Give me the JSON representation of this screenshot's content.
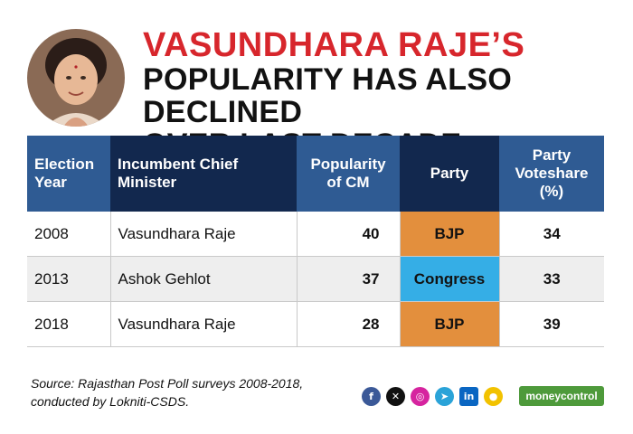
{
  "title": {
    "line1": "VASUNDHARA RAJE’S",
    "line2": "POPULARITY HAS ALSO DECLINED",
    "line3": "OVER LAST DECADE"
  },
  "table": {
    "headers": [
      "Election Year",
      "Incumbent Chief Minister",
      "Popularity of CM",
      "Party",
      "Party Voteshare (%)"
    ],
    "rows": [
      {
        "year": "2008",
        "cm": "Vasundhara Raje",
        "popularity": "40",
        "party": "BJP",
        "voteshare": "34",
        "party_color": "#e38f3d"
      },
      {
        "year": "2013",
        "cm": "Ashok Gehlot",
        "popularity": "37",
        "party": "Congress",
        "voteshare": "33",
        "party_color": "#35aee6"
      },
      {
        "year": "2018",
        "cm": "Vasundhara Raje",
        "popularity": "28",
        "party": "BJP",
        "voteshare": "39",
        "party_color": "#e38f3d"
      }
    ]
  },
  "source": {
    "line1": "Source: Rajasthan Post Poll surveys 2008-2018,",
    "line2": "conducted by Lokniti-CSDS."
  },
  "social_icons": [
    "facebook-icon",
    "x-icon",
    "instagram-icon",
    "telegram-icon",
    "linkedin-icon",
    "koo-icon"
  ],
  "brand": "moneycontrol",
  "colors": {
    "title_red": "#d7262c",
    "header_blue": "#2f5b93",
    "header_navy": "#12284e",
    "bjp": "#e38f3d",
    "congress": "#35aee6"
  }
}
